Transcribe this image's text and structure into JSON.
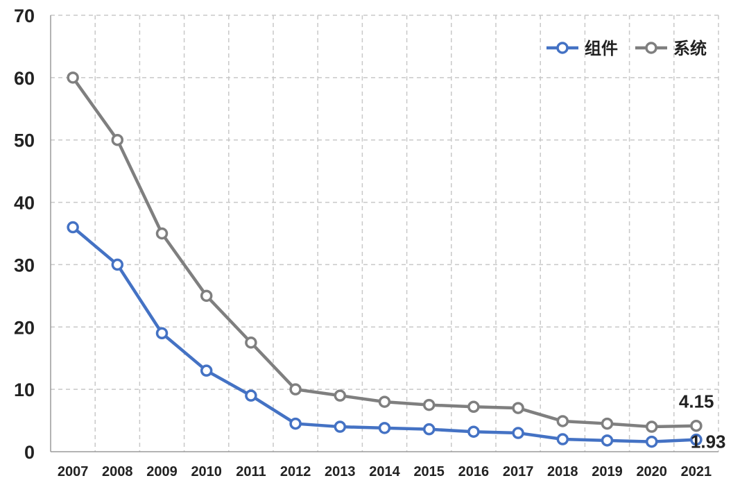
{
  "chart_data": {
    "type": "line",
    "title": "",
    "xlabel": "",
    "ylabel": "",
    "ylim": [
      0,
      70
    ],
    "y_ticks": [
      "0",
      "10",
      "20",
      "30",
      "40",
      "50",
      "60",
      "70"
    ],
    "categories": [
      "2007",
      "2008",
      "2009",
      "2010",
      "2011",
      "2012",
      "2013",
      "2014",
      "2015",
      "2016",
      "2017",
      "2018",
      "2019",
      "2020",
      "2021"
    ],
    "grid": true,
    "legend_position": "top-right",
    "series": [
      {
        "name": "组件",
        "color": "#4472C4",
        "values": [
          36,
          30,
          19,
          13,
          9,
          4.5,
          4,
          3.8,
          3.6,
          3.2,
          3.0,
          2.0,
          1.8,
          1.6,
          1.93
        ]
      },
      {
        "name": "系统",
        "color": "#7F7F7F",
        "values": [
          60,
          50,
          35,
          25,
          17.5,
          10,
          9,
          8,
          7.5,
          7.2,
          7.0,
          4.9,
          4.5,
          4.0,
          4.15
        ]
      }
    ],
    "annotations": [
      {
        "series": 1,
        "index": 14,
        "text": "4.15"
      },
      {
        "series": 0,
        "index": 14,
        "text": "1.93"
      }
    ]
  }
}
